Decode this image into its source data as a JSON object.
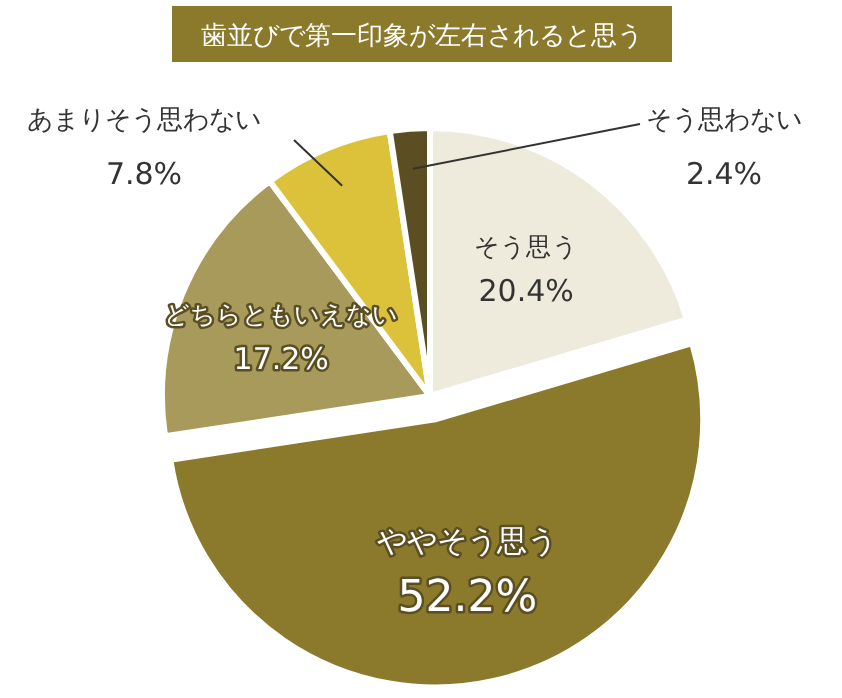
{
  "chart_data": {
    "type": "pie",
    "title": "歯並びで第一印象が左右されると思う",
    "categories": [
      "そう思う",
      "ややそう思う",
      "どちらともいえない",
      "あまりそう思わない",
      "そう思わない"
    ],
    "values": [
      20.4,
      52.2,
      17.2,
      7.8,
      2.4
    ],
    "value_labels": [
      "20.4%",
      "52.2%",
      "17.2%",
      "7.8%",
      "2.4%"
    ],
    "colors": [
      "#eeebdc",
      "#8b7a2b",
      "#a89a5a",
      "#dcc23a",
      "#5a4e22"
    ]
  }
}
